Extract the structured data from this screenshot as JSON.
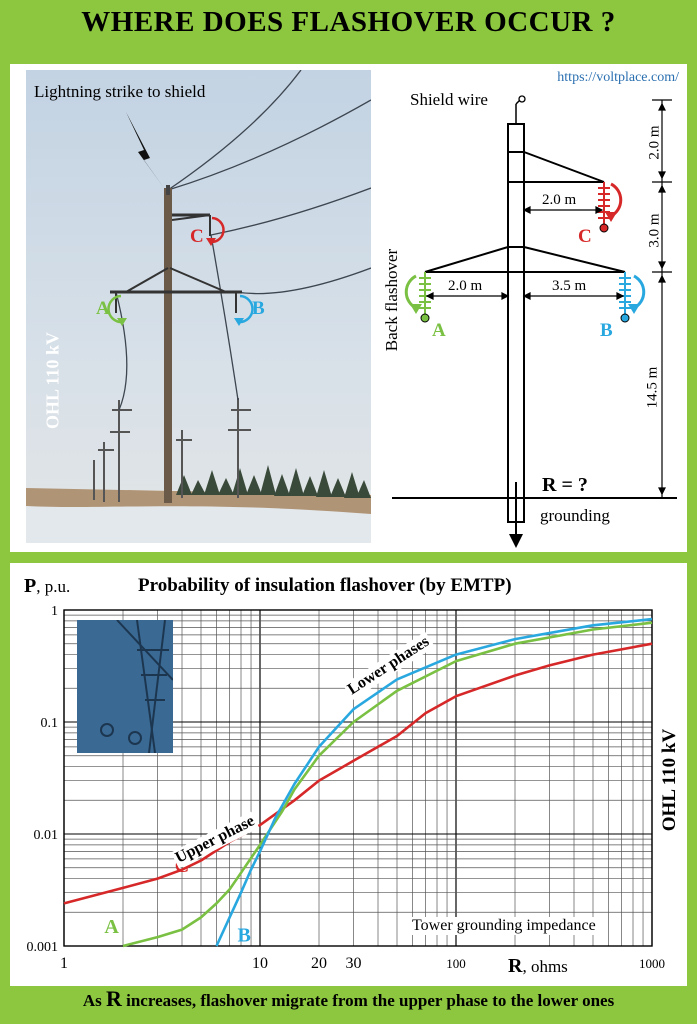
{
  "title": "WHERE DOES FLASHOVER OCCUR ?",
  "url": "https://voltplace.com/",
  "photo": {
    "strike_label": "Lightning strike to shield",
    "vertical_label": "OHL 110 kV",
    "phase_c": "C",
    "phase_a": "A",
    "phase_b": "B"
  },
  "diagram": {
    "shield_wire": "Shield wire",
    "dim_top": "2.0 m",
    "dim_mid": "3.0 m",
    "dim_low": "14.5 m",
    "arm_c": "2.0 m",
    "arm_a": "2.0 m",
    "arm_b": "3.5 m",
    "back_flashover": "Back flashover",
    "r_label": "R = ?",
    "grounding": "grounding",
    "phase_c": "C",
    "phase_a": "A",
    "phase_b": "B"
  },
  "colors": {
    "c": "#d62828",
    "a": "#7ac143",
    "b": "#29a8e0",
    "url": "#2a6fb0"
  },
  "chart_data": {
    "type": "line",
    "title": "Probability of insulation flashover (by EMTP)",
    "ylabel": "P, p.u.",
    "xlabel": "R, ohms",
    "side_label": "OHL 110 kV",
    "x_scale": "log",
    "y_scale": "log",
    "xlim": [
      1,
      1000
    ],
    "ylim": [
      0.001,
      1
    ],
    "x_ticks": [
      "1",
      "10",
      "20",
      "30",
      "100",
      "1000"
    ],
    "y_ticks": [
      "1",
      "0.1",
      "0.01",
      "0.001"
    ],
    "annotation_box": "Tower grounding impedance",
    "annotations": {
      "upper": "Upper phase",
      "lower": "Lower phases"
    },
    "grid": true,
    "series": [
      {
        "name": "C",
        "color": "#d62828",
        "x": [
          1,
          2,
          3,
          4,
          5,
          7,
          10,
          15,
          20,
          30,
          50,
          70,
          100,
          200,
          300,
          500,
          1000
        ],
        "y": [
          0.0024,
          0.0033,
          0.004,
          0.0048,
          0.0058,
          0.0085,
          0.012,
          0.02,
          0.03,
          0.045,
          0.075,
          0.12,
          0.17,
          0.26,
          0.32,
          0.4,
          0.5
        ]
      },
      {
        "name": "A",
        "color": "#7ac143",
        "x": [
          2,
          3,
          4,
          5,
          6,
          7,
          8,
          10,
          13,
          15,
          20,
          30,
          50,
          100,
          200,
          500,
          1000
        ],
        "y": [
          0.001,
          0.0012,
          0.0014,
          0.0018,
          0.0024,
          0.0032,
          0.0045,
          0.008,
          0.016,
          0.025,
          0.05,
          0.1,
          0.19,
          0.35,
          0.5,
          0.67,
          0.77
        ]
      },
      {
        "name": "B",
        "color": "#29a8e0",
        "x": [
          6,
          7,
          8,
          9,
          10,
          12,
          15,
          20,
          30,
          50,
          100,
          200,
          500,
          1000
        ],
        "y": [
          0.001,
          0.0018,
          0.003,
          0.0048,
          0.007,
          0.014,
          0.028,
          0.06,
          0.13,
          0.24,
          0.4,
          0.55,
          0.73,
          0.83
        ]
      }
    ]
  },
  "caption": {
    "prefix": "As ",
    "big": "R",
    "rest": " increases, flashover migrate from the upper phase to the lower ones"
  }
}
